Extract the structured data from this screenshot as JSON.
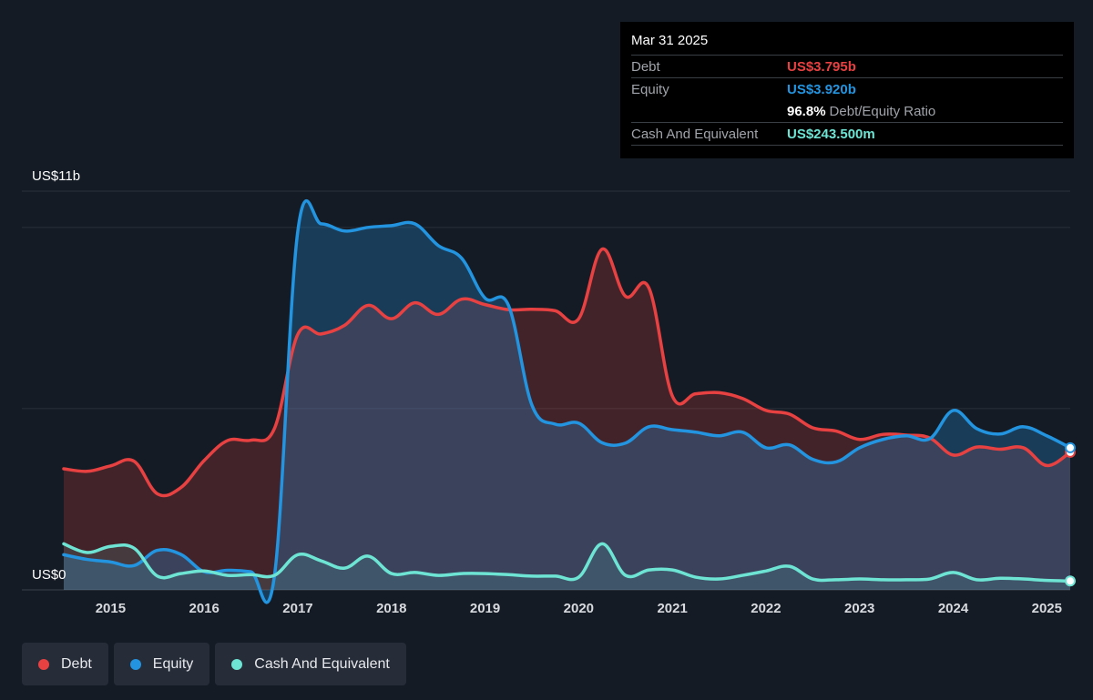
{
  "tooltip": {
    "date": "Mar 31 2025",
    "debt_label": "Debt",
    "debt_value": "US$3.795b",
    "equity_label": "Equity",
    "equity_value": "US$3.920b",
    "ratio_value": "96.8%",
    "ratio_label": "Debt/Equity Ratio",
    "cash_label": "Cash And Equivalent",
    "cash_value": "US$243.500m"
  },
  "legend": [
    {
      "label": "Debt",
      "color": "#e84142"
    },
    {
      "label": "Equity",
      "color": "#2394df"
    },
    {
      "label": "Cash And Equivalent",
      "color": "#6ee5d4"
    }
  ],
  "chart_data": {
    "type": "area",
    "ylabel_top": "US$11b",
    "ylabel_bottom": "US$0",
    "ylim": [
      0,
      11
    ],
    "xlim": [
      2014.5,
      2025.25
    ],
    "x_ticks": [
      "2015",
      "2016",
      "2017",
      "2018",
      "2019",
      "2020",
      "2021",
      "2022",
      "2023",
      "2024",
      "2025"
    ],
    "series": [
      {
        "name": "Debt",
        "color": "#e84142",
        "points": [
          [
            2014.5,
            3.34
          ],
          [
            2014.75,
            3.27
          ],
          [
            2015.0,
            3.42
          ],
          [
            2015.25,
            3.55
          ],
          [
            2015.5,
            2.65
          ],
          [
            2015.75,
            2.82
          ],
          [
            2016.0,
            3.57
          ],
          [
            2016.25,
            4.12
          ],
          [
            2016.5,
            4.13
          ],
          [
            2016.75,
            4.45
          ],
          [
            2017.0,
            7.05
          ],
          [
            2017.25,
            7.06
          ],
          [
            2017.5,
            7.3
          ],
          [
            2017.75,
            7.85
          ],
          [
            2018.0,
            7.48
          ],
          [
            2018.25,
            7.92
          ],
          [
            2018.5,
            7.6
          ],
          [
            2018.75,
            8.02
          ],
          [
            2019.0,
            7.87
          ],
          [
            2019.25,
            7.73
          ],
          [
            2019.5,
            7.74
          ],
          [
            2019.75,
            7.7
          ],
          [
            2020.0,
            7.48
          ],
          [
            2020.25,
            9.4
          ],
          [
            2020.5,
            8.1
          ],
          [
            2020.75,
            8.33
          ],
          [
            2021.0,
            5.35
          ],
          [
            2021.25,
            5.41
          ],
          [
            2021.5,
            5.44
          ],
          [
            2021.75,
            5.28
          ],
          [
            2022.0,
            4.95
          ],
          [
            2022.25,
            4.85
          ],
          [
            2022.5,
            4.47
          ],
          [
            2022.75,
            4.38
          ],
          [
            2023.0,
            4.15
          ],
          [
            2023.25,
            4.29
          ],
          [
            2023.5,
            4.27
          ],
          [
            2023.75,
            4.19
          ],
          [
            2024.0,
            3.72
          ],
          [
            2024.25,
            3.94
          ],
          [
            2024.5,
            3.88
          ],
          [
            2024.75,
            3.92
          ],
          [
            2025.0,
            3.43
          ],
          [
            2025.25,
            3.795
          ]
        ]
      },
      {
        "name": "Equity",
        "color": "#2394df",
        "points": [
          [
            2014.5,
            0.97
          ],
          [
            2014.75,
            0.84
          ],
          [
            2015.0,
            0.77
          ],
          [
            2015.25,
            0.67
          ],
          [
            2015.5,
            1.09
          ],
          [
            2015.75,
            0.98
          ],
          [
            2016.0,
            0.5
          ],
          [
            2016.25,
            0.54
          ],
          [
            2016.5,
            0.5
          ],
          [
            2016.75,
            0.38
          ],
          [
            2017.0,
            9.9
          ],
          [
            2017.25,
            10.1
          ],
          [
            2017.5,
            9.9
          ],
          [
            2017.75,
            10.0
          ],
          [
            2018.0,
            10.05
          ],
          [
            2018.25,
            10.1
          ],
          [
            2018.5,
            9.5
          ],
          [
            2018.75,
            9.15
          ],
          [
            2019.0,
            8.05
          ],
          [
            2019.25,
            7.85
          ],
          [
            2019.5,
            5.1
          ],
          [
            2019.75,
            4.57
          ],
          [
            2020.0,
            4.6
          ],
          [
            2020.25,
            4.06
          ],
          [
            2020.5,
            4.05
          ],
          [
            2020.75,
            4.5
          ],
          [
            2021.0,
            4.42
          ],
          [
            2021.25,
            4.35
          ],
          [
            2021.5,
            4.25
          ],
          [
            2021.75,
            4.35
          ],
          [
            2022.0,
            3.92
          ],
          [
            2022.25,
            4.0
          ],
          [
            2022.5,
            3.6
          ],
          [
            2022.75,
            3.53
          ],
          [
            2023.0,
            3.92
          ],
          [
            2023.25,
            4.15
          ],
          [
            2023.5,
            4.25
          ],
          [
            2023.75,
            4.17
          ],
          [
            2024.0,
            4.95
          ],
          [
            2024.25,
            4.45
          ],
          [
            2024.5,
            4.3
          ],
          [
            2024.75,
            4.5
          ],
          [
            2025.0,
            4.25
          ],
          [
            2025.25,
            3.92
          ]
        ]
      },
      {
        "name": "Cash And Equivalent",
        "color": "#6ee5d4",
        "points": [
          [
            2014.5,
            1.27
          ],
          [
            2014.75,
            1.03
          ],
          [
            2015.0,
            1.2
          ],
          [
            2015.25,
            1.15
          ],
          [
            2015.5,
            0.38
          ],
          [
            2015.75,
            0.45
          ],
          [
            2016.0,
            0.52
          ],
          [
            2016.25,
            0.4
          ],
          [
            2016.5,
            0.42
          ],
          [
            2016.75,
            0.4
          ],
          [
            2017.0,
            0.97
          ],
          [
            2017.25,
            0.8
          ],
          [
            2017.5,
            0.6
          ],
          [
            2017.75,
            0.93
          ],
          [
            2018.0,
            0.45
          ],
          [
            2018.25,
            0.48
          ],
          [
            2018.5,
            0.4
          ],
          [
            2018.75,
            0.45
          ],
          [
            2019.0,
            0.45
          ],
          [
            2019.25,
            0.42
          ],
          [
            2019.5,
            0.38
          ],
          [
            2019.75,
            0.38
          ],
          [
            2020.0,
            0.35
          ],
          [
            2020.25,
            1.27
          ],
          [
            2020.5,
            0.4
          ],
          [
            2020.75,
            0.55
          ],
          [
            2021.0,
            0.55
          ],
          [
            2021.25,
            0.35
          ],
          [
            2021.5,
            0.3
          ],
          [
            2021.75,
            0.4
          ],
          [
            2022.0,
            0.52
          ],
          [
            2022.25,
            0.65
          ],
          [
            2022.5,
            0.3
          ],
          [
            2022.75,
            0.28
          ],
          [
            2023.0,
            0.3
          ],
          [
            2023.25,
            0.28
          ],
          [
            2023.5,
            0.28
          ],
          [
            2023.75,
            0.3
          ],
          [
            2024.0,
            0.48
          ],
          [
            2024.25,
            0.28
          ],
          [
            2024.5,
            0.32
          ],
          [
            2024.75,
            0.3
          ],
          [
            2025.0,
            0.26
          ],
          [
            2025.25,
            0.2435
          ]
        ]
      }
    ]
  }
}
